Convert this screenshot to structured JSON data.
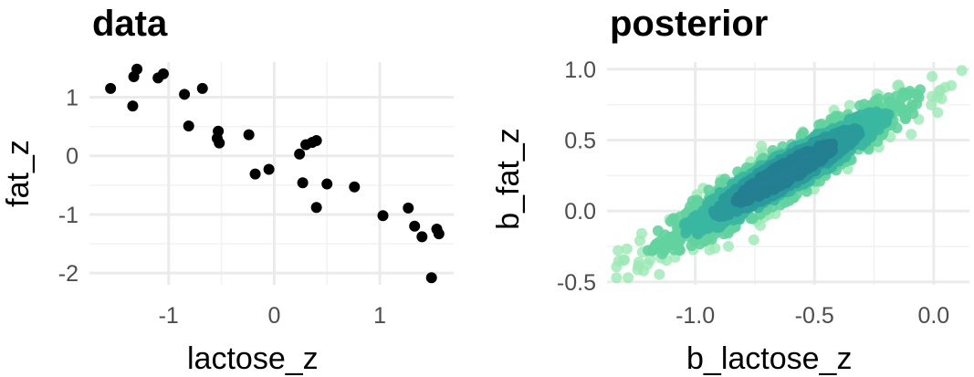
{
  "chart_data": [
    {
      "type": "scatter",
      "title": "data",
      "xlabel": "lactose_z",
      "ylabel": "fat_z",
      "xlim": [
        -1.75,
        1.7
      ],
      "ylim": [
        -2.2,
        1.6
      ],
      "xticks": [
        -1,
        0,
        1
      ],
      "yticks": [
        -2,
        -1,
        0,
        1
      ],
      "xtick_labels": [
        "-1",
        "0",
        "1"
      ],
      "ytick_labels": [
        "-2",
        "-1",
        "0",
        "1"
      ],
      "grid": true,
      "point_color": "#000000",
      "series": [
        {
          "points": [
            [
              -1.55,
              1.15
            ],
            [
              -1.3,
              1.48
            ],
            [
              -1.33,
              1.35
            ],
            [
              -1.34,
              0.85
            ],
            [
              -1.1,
              1.33
            ],
            [
              -1.05,
              1.4
            ],
            [
              -0.85,
              1.05
            ],
            [
              -0.68,
              1.15
            ],
            [
              -0.81,
              0.51
            ],
            [
              -0.53,
              0.42
            ],
            [
              -0.54,
              0.3
            ],
            [
              -0.52,
              0.22
            ],
            [
              -0.24,
              0.36
            ],
            [
              -0.18,
              -0.31
            ],
            [
              -0.05,
              -0.23
            ],
            [
              0.24,
              0.03
            ],
            [
              0.3,
              0.19
            ],
            [
              0.36,
              0.23
            ],
            [
              0.4,
              0.26
            ],
            [
              0.27,
              -0.46
            ],
            [
              0.5,
              -0.48
            ],
            [
              0.4,
              -0.88
            ],
            [
              0.76,
              -0.53
            ],
            [
              1.03,
              -1.02
            ],
            [
              1.27,
              -0.89
            ],
            [
              1.33,
              -1.2
            ],
            [
              1.4,
              -1.38
            ],
            [
              1.54,
              -1.25
            ],
            [
              1.56,
              -1.33
            ],
            [
              1.49,
              -2.08
            ]
          ]
        }
      ]
    },
    {
      "type": "scatter",
      "title": "posterior",
      "xlabel": "b_lactose_z",
      "ylabel": "b_fat_z",
      "xlim": [
        -1.37,
        0.15
      ],
      "ylim": [
        -0.52,
        1.05
      ],
      "xticks": [
        -1.0,
        -0.5,
        0.0
      ],
      "yticks": [
        -0.5,
        0.0,
        0.5,
        1.0
      ],
      "xtick_labels": [
        "-1.0",
        "-0.5",
        "0.0"
      ],
      "ytick_labels": [
        "-0.5",
        "0.0",
        "0.5",
        "1.0"
      ],
      "grid": true,
      "density_shading": true,
      "density_colors": [
        "#9be8b4",
        "#62d39d",
        "#3bb7a0",
        "#2a9b9a",
        "#237f91"
      ],
      "distribution": {
        "center": [
          -0.62,
          0.27
        ],
        "x_range": [
          -1.33,
          0.12
        ],
        "y_range": [
          -0.47,
          0.99
        ],
        "correlation": 0.93
      }
    }
  ]
}
